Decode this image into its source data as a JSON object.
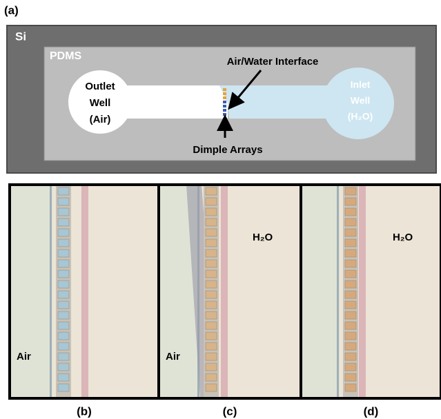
{
  "panel_a": {
    "label": "(a)",
    "substrate": "Si",
    "layer": "PDMS",
    "outlet_well": [
      "Outlet",
      "Well",
      "(Air)"
    ],
    "inlet_well": [
      "Inlet",
      "Well",
      "(H₂O)"
    ],
    "interface_label": "Air/Water Interface",
    "dimple_label": "Dimple Arrays"
  },
  "panels": [
    {
      "label": "(b)",
      "annotations": [
        "Air"
      ]
    },
    {
      "label": "(c)",
      "annotations": [
        "Air",
        "H₂O"
      ]
    },
    {
      "label": "(d)",
      "annotations": [
        "H₂O"
      ]
    }
  ]
}
